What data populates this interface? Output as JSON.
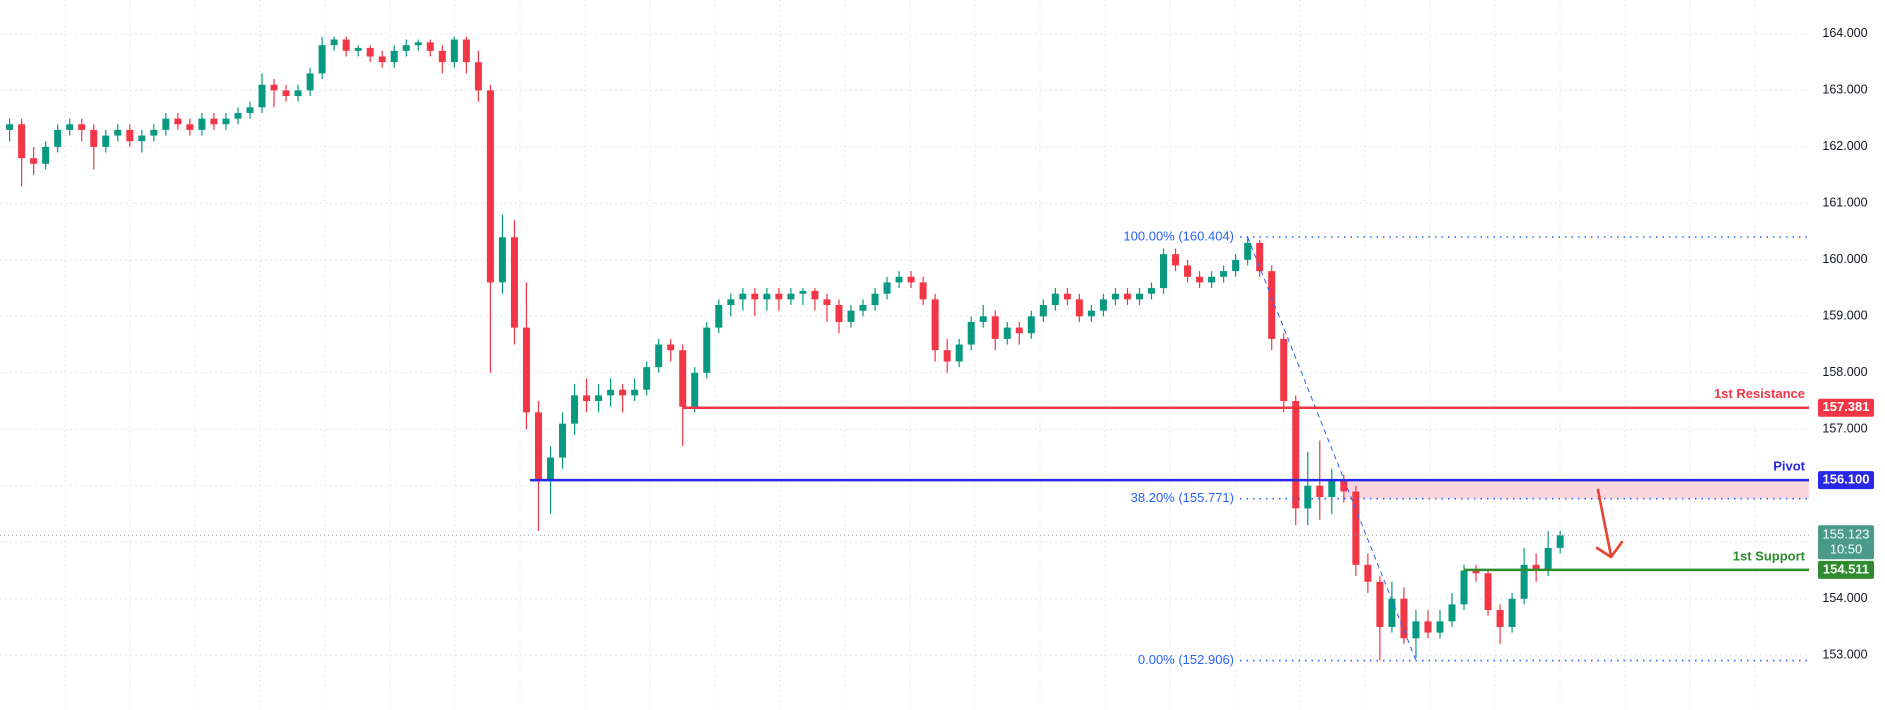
{
  "chart_data": {
    "type": "candlestick",
    "up_color": "#089981",
    "down_color": "#f23645",
    "grid": true,
    "ylim": [
      152.03,
      164.6
    ],
    "yticks": [
      {
        "value": 153,
        "label": "153.000"
      },
      {
        "value": 154,
        "label": "154.000"
      },
      {
        "value": 155,
        "label": "155.000"
      },
      {
        "value": 156,
        "label": "156.000"
      },
      {
        "value": 157,
        "label": "157.000"
      },
      {
        "value": 158,
        "label": "158.000"
      },
      {
        "value": 159,
        "label": "159.000"
      },
      {
        "value": 160,
        "label": "160.000"
      },
      {
        "value": 161,
        "label": "161.000"
      },
      {
        "value": 162,
        "label": "162.000"
      },
      {
        "value": 163,
        "label": "163.000"
      },
      {
        "value": 164,
        "label": "164.000"
      }
    ],
    "candles": [
      [
        162.3,
        162.5,
        162.1,
        162.4
      ],
      [
        162.4,
        162.5,
        161.3,
        161.8
      ],
      [
        161.8,
        162.0,
        161.5,
        161.7
      ],
      [
        161.7,
        162.1,
        161.6,
        162.0
      ],
      [
        162.0,
        162.4,
        161.9,
        162.3
      ],
      [
        162.3,
        162.5,
        162.2,
        162.4
      ],
      [
        162.4,
        162.5,
        162.1,
        162.3
      ],
      [
        162.3,
        162.4,
        161.6,
        162.0
      ],
      [
        162.0,
        162.3,
        161.9,
        162.2
      ],
      [
        162.2,
        162.4,
        162.1,
        162.3
      ],
      [
        162.3,
        162.4,
        162.0,
        162.1
      ],
      [
        162.1,
        162.3,
        161.9,
        162.2
      ],
      [
        162.2,
        162.4,
        162.1,
        162.3
      ],
      [
        162.3,
        162.6,
        162.2,
        162.5
      ],
      [
        162.5,
        162.6,
        162.3,
        162.4
      ],
      [
        162.4,
        162.5,
        162.2,
        162.3
      ],
      [
        162.3,
        162.6,
        162.2,
        162.5
      ],
      [
        162.5,
        162.6,
        162.3,
        162.4
      ],
      [
        162.4,
        162.6,
        162.3,
        162.5
      ],
      [
        162.5,
        162.7,
        162.4,
        162.6
      ],
      [
        162.6,
        162.8,
        162.5,
        162.7
      ],
      [
        162.7,
        163.3,
        162.6,
        163.1
      ],
      [
        163.1,
        163.2,
        162.7,
        163.0
      ],
      [
        163.0,
        163.1,
        162.8,
        162.9
      ],
      [
        162.9,
        163.1,
        162.8,
        163.0
      ],
      [
        163.0,
        163.4,
        162.9,
        163.3
      ],
      [
        163.3,
        163.95,
        163.2,
        163.8
      ],
      [
        163.8,
        163.95,
        163.7,
        163.9
      ],
      [
        163.9,
        163.95,
        163.6,
        163.7
      ],
      [
        163.7,
        163.8,
        163.6,
        163.75
      ],
      [
        163.75,
        163.8,
        163.5,
        163.6
      ],
      [
        163.6,
        163.7,
        163.4,
        163.5
      ],
      [
        163.5,
        163.8,
        163.4,
        163.7
      ],
      [
        163.7,
        163.9,
        163.6,
        163.8
      ],
      [
        163.8,
        163.9,
        163.7,
        163.85
      ],
      [
        163.85,
        163.9,
        163.6,
        163.7
      ],
      [
        163.7,
        163.8,
        163.3,
        163.5
      ],
      [
        163.5,
        163.95,
        163.4,
        163.9
      ],
      [
        163.9,
        163.95,
        163.3,
        163.5
      ],
      [
        163.5,
        163.7,
        162.8,
        163.0
      ],
      [
        163.0,
        163.1,
        158.0,
        159.6
      ],
      [
        159.6,
        160.8,
        159.4,
        160.4
      ],
      [
        160.4,
        160.7,
        158.5,
        158.8
      ],
      [
        158.8,
        159.6,
        157.0,
        157.3
      ],
      [
        157.3,
        157.5,
        155.2,
        156.1
      ],
      [
        156.1,
        156.7,
        155.5,
        156.5
      ],
      [
        156.5,
        157.3,
        156.3,
        157.1
      ],
      [
        157.1,
        157.8,
        156.9,
        157.6
      ],
      [
        157.6,
        157.9,
        157.3,
        157.5
      ],
      [
        157.5,
        157.8,
        157.3,
        157.6
      ],
      [
        157.6,
        157.9,
        157.4,
        157.7
      ],
      [
        157.7,
        157.8,
        157.3,
        157.6
      ],
      [
        157.6,
        157.9,
        157.5,
        157.7
      ],
      [
        157.7,
        158.2,
        157.6,
        158.1
      ],
      [
        158.1,
        158.6,
        158.0,
        158.5
      ],
      [
        158.5,
        158.6,
        158.2,
        158.4
      ],
      [
        158.4,
        158.5,
        156.7,
        157.4
      ],
      [
        157.4,
        158.1,
        157.3,
        158.0
      ],
      [
        158.0,
        158.9,
        157.9,
        158.8
      ],
      [
        158.8,
        159.3,
        158.7,
        159.2
      ],
      [
        159.2,
        159.4,
        159.0,
        159.3
      ],
      [
        159.3,
        159.5,
        159.1,
        159.4
      ],
      [
        159.4,
        159.5,
        159.0,
        159.3
      ],
      [
        159.3,
        159.5,
        159.1,
        159.4
      ],
      [
        159.4,
        159.5,
        159.1,
        159.3
      ],
      [
        159.3,
        159.5,
        159.2,
        159.4
      ],
      [
        159.4,
        159.5,
        159.2,
        159.45
      ],
      [
        159.45,
        159.5,
        159.1,
        159.3
      ],
      [
        159.3,
        159.4,
        158.9,
        159.2
      ],
      [
        159.2,
        159.3,
        158.7,
        158.9
      ],
      [
        158.9,
        159.2,
        158.8,
        159.1
      ],
      [
        159.1,
        159.3,
        159.0,
        159.2
      ],
      [
        159.2,
        159.5,
        159.1,
        159.4
      ],
      [
        159.4,
        159.7,
        159.3,
        159.6
      ],
      [
        159.6,
        159.8,
        159.5,
        159.7
      ],
      [
        159.7,
        159.8,
        159.5,
        159.6
      ],
      [
        159.6,
        159.7,
        159.2,
        159.3
      ],
      [
        159.3,
        159.4,
        158.2,
        158.4
      ],
      [
        158.4,
        158.6,
        158.0,
        158.2
      ],
      [
        158.2,
        158.6,
        158.1,
        158.5
      ],
      [
        158.5,
        159.0,
        158.4,
        158.9
      ],
      [
        158.9,
        159.2,
        158.8,
        159.0
      ],
      [
        159.0,
        159.1,
        158.4,
        158.6
      ],
      [
        158.6,
        158.9,
        158.5,
        158.8
      ],
      [
        158.8,
        158.9,
        158.5,
        158.7
      ],
      [
        158.7,
        159.1,
        158.6,
        159.0
      ],
      [
        159.0,
        159.3,
        158.9,
        159.2
      ],
      [
        159.2,
        159.5,
        159.1,
        159.4
      ],
      [
        159.4,
        159.5,
        159.2,
        159.3
      ],
      [
        159.3,
        159.4,
        158.9,
        159.0
      ],
      [
        159.0,
        159.2,
        158.9,
        159.1
      ],
      [
        159.1,
        159.4,
        159.0,
        159.3
      ],
      [
        159.3,
        159.5,
        159.2,
        159.4
      ],
      [
        159.4,
        159.5,
        159.2,
        159.3
      ],
      [
        159.3,
        159.5,
        159.2,
        159.4
      ],
      [
        159.4,
        159.6,
        159.3,
        159.5
      ],
      [
        159.5,
        160.2,
        159.4,
        160.1
      ],
      [
        160.1,
        160.2,
        159.8,
        159.9
      ],
      [
        159.9,
        160.0,
        159.6,
        159.7
      ],
      [
        159.7,
        159.8,
        159.5,
        159.6
      ],
      [
        159.6,
        159.8,
        159.5,
        159.7
      ],
      [
        159.7,
        159.9,
        159.6,
        159.8
      ],
      [
        159.8,
        160.1,
        159.7,
        160.0
      ],
      [
        160.0,
        160.404,
        159.9,
        160.3
      ],
      [
        160.3,
        160.35,
        159.7,
        159.8
      ],
      [
        159.8,
        159.9,
        158.4,
        158.6
      ],
      [
        158.6,
        158.7,
        157.3,
        157.5
      ],
      [
        157.5,
        157.6,
        155.3,
        155.6
      ],
      [
        155.6,
        156.6,
        155.3,
        156.0
      ],
      [
        156.0,
        156.8,
        155.4,
        155.8
      ],
      [
        155.8,
        156.3,
        155.5,
        156.1
      ],
      [
        156.1,
        156.2,
        155.7,
        155.9
      ],
      [
        155.9,
        156.0,
        154.4,
        154.6
      ],
      [
        154.6,
        154.8,
        154.1,
        154.3
      ],
      [
        154.3,
        154.4,
        152.906,
        153.5
      ],
      [
        153.5,
        154.3,
        153.4,
        154.0
      ],
      [
        154.0,
        154.2,
        153.2,
        153.3
      ],
      [
        153.3,
        153.8,
        152.95,
        153.6
      ],
      [
        153.6,
        153.8,
        153.3,
        153.4
      ],
      [
        153.4,
        153.8,
        153.3,
        153.6
      ],
      [
        153.6,
        154.1,
        153.5,
        153.9
      ],
      [
        153.9,
        154.6,
        153.8,
        154.5
      ],
      [
        154.5,
        154.6,
        154.3,
        154.45
      ],
      [
        154.45,
        154.5,
        153.7,
        153.8
      ],
      [
        153.8,
        153.9,
        153.2,
        153.5
      ],
      [
        153.5,
        154.1,
        153.4,
        154.0
      ],
      [
        154.0,
        154.9,
        153.9,
        154.6
      ],
      [
        154.6,
        154.8,
        154.3,
        154.5
      ],
      [
        154.5,
        155.2,
        154.4,
        154.9
      ],
      [
        154.9,
        155.2,
        154.8,
        155.123
      ]
    ],
    "levels": [
      {
        "name": "1st Resistance",
        "value": 157.381,
        "value_label": "157.381",
        "color": "#f23645"
      },
      {
        "name": "Pivot",
        "value": 156.1,
        "value_label": "156.100",
        "color": "#2727e6"
      },
      {
        "name": "1st Support",
        "value": 154.511,
        "value_label": "154.511",
        "color": "#2e8b2e"
      }
    ],
    "fibonacci": {
      "color": "#2962ff",
      "levels": [
        {
          "label": "100.00% (160.404)",
          "value": 160.404
        },
        {
          "label": "38.20% (155.771)",
          "value": 155.771
        },
        {
          "label": "0.00% (152.906)",
          "value": 152.906
        }
      ]
    },
    "last_price": {
      "value": 155.123,
      "value_label": "155.123",
      "countdown": "10:50",
      "color": "#4a9a8c"
    }
  }
}
